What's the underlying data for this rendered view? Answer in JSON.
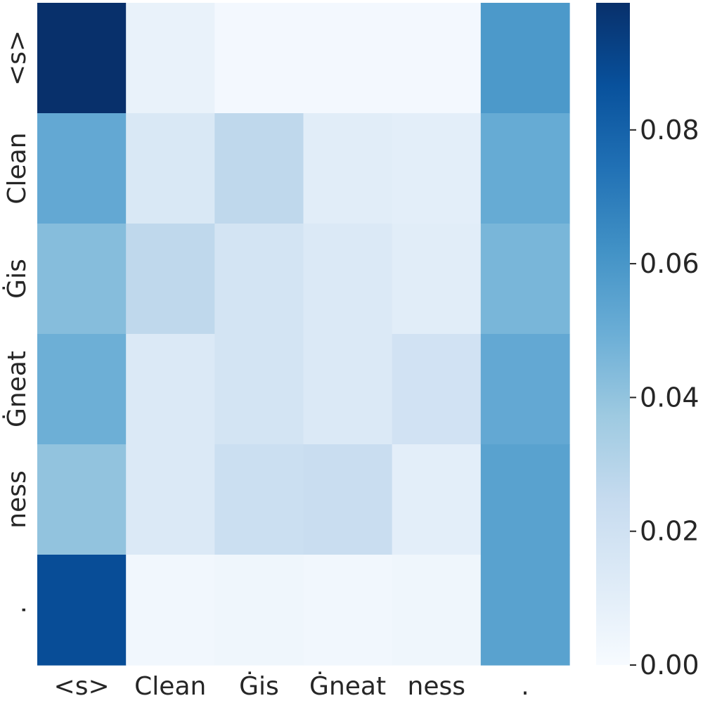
{
  "chart_data": {
    "type": "heatmap",
    "title": "",
    "xlabel": "",
    "ylabel": "",
    "x_labels": [
      "<s>",
      "Clean",
      "Ġis",
      "Ġneat",
      "ness",
      "."
    ],
    "y_labels": [
      "<s>",
      "Clean",
      "Ġis",
      "Ġneat",
      "ness",
      "."
    ],
    "values": [
      [
        0.099,
        0.007,
        0.002,
        0.002,
        0.002,
        0.059
      ],
      [
        0.052,
        0.015,
        0.027,
        0.011,
        0.01,
        0.051
      ],
      [
        0.043,
        0.027,
        0.018,
        0.014,
        0.011,
        0.046
      ],
      [
        0.049,
        0.014,
        0.018,
        0.014,
        0.019,
        0.052
      ],
      [
        0.04,
        0.014,
        0.022,
        0.023,
        0.01,
        0.055
      ],
      [
        0.088,
        0.003,
        0.004,
        0.003,
        0.004,
        0.055
      ]
    ],
    "colormap": "Blues",
    "vmin": 0,
    "vmax": 0.099,
    "colorbar": {
      "ticks": [
        0.0,
        0.02,
        0.04,
        0.06,
        0.08
      ],
      "tick_labels": [
        "0.00",
        "0.02",
        "0.04",
        "0.06",
        "0.08"
      ]
    },
    "grid": false,
    "legend": "colorbar-right"
  }
}
